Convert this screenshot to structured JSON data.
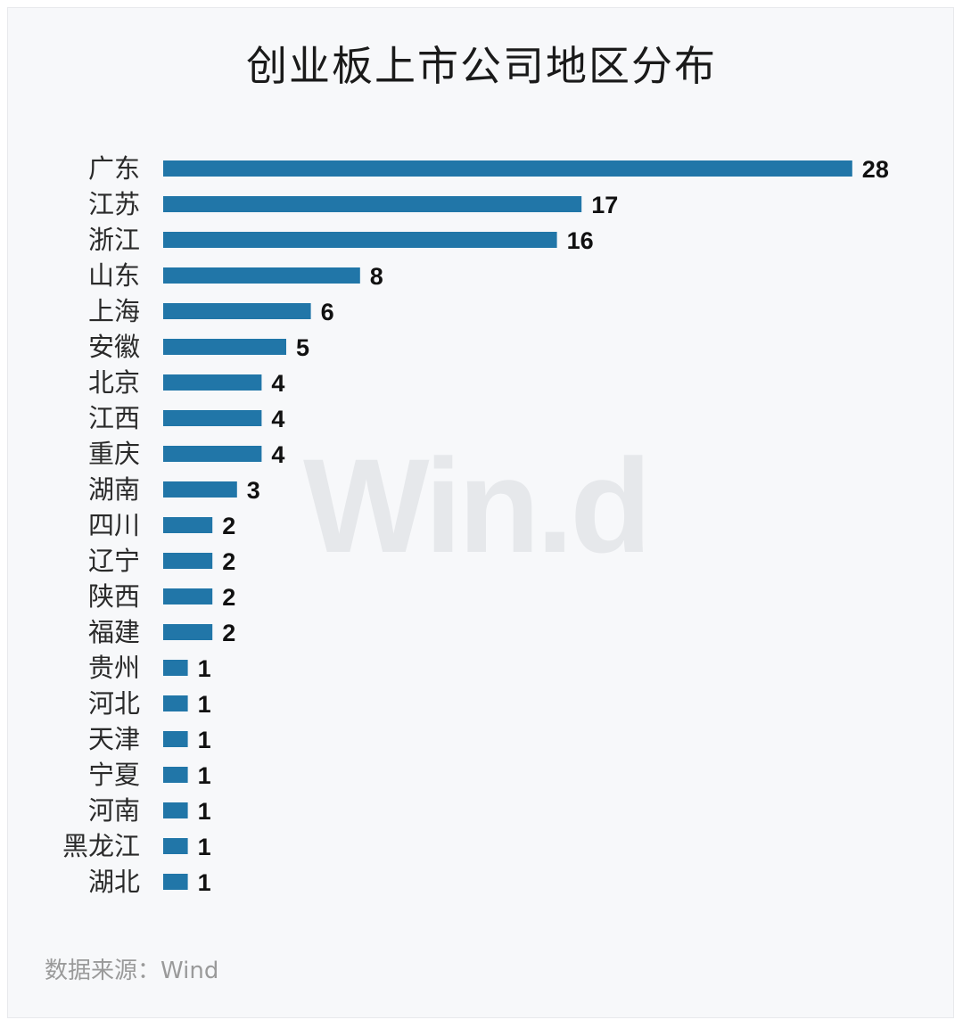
{
  "chart_data": {
    "type": "bar",
    "orientation": "horizontal",
    "title": "创业板上市公司地区分布",
    "categories": [
      "广东",
      "江苏",
      "浙江",
      "山东",
      "上海",
      "安徽",
      "北京",
      "江西",
      "重庆",
      "湖南",
      "四川",
      "辽宁",
      "陕西",
      "福建",
      "贵州",
      "河北",
      "天津",
      "宁夏",
      "河南",
      "黑龙江",
      "湖北"
    ],
    "values": [
      28,
      17,
      16,
      8,
      6,
      5,
      4,
      4,
      4,
      3,
      2,
      2,
      2,
      2,
      1,
      1,
      1,
      1,
      1,
      1,
      1
    ],
    "bar_color": "#2176a8",
    "grid": false,
    "legend": "none"
  },
  "source": "数据来源：Wind",
  "watermark": "Win.d"
}
